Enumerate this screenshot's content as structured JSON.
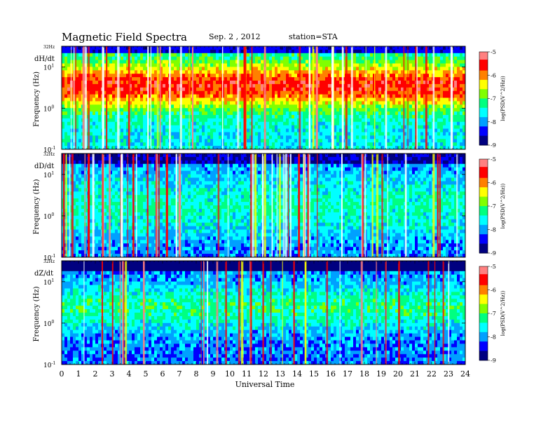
{
  "title": "Magnetic  Field  Spectra",
  "date": "Sep. 2  , 2012",
  "station": "station=STA",
  "chart_data": [
    {
      "type": "heatmap",
      "panel_label": "dH/dt",
      "ylabel": "Frequency  (Hz)",
      "y_top_label": "32Hz",
      "y_ticks": [
        {
          "label": "10",
          "exp": "1",
          "value": 10
        },
        {
          "label": "10",
          "exp": "0",
          "value": 1
        },
        {
          "label": "10",
          "exp": "-1",
          "value": 0.1
        }
      ],
      "yscale": "log",
      "ylim": [
        0.1,
        32
      ],
      "xlim": [
        0,
        24
      ],
      "colorbar": {
        "label": "log(PSD(V^2/Hz))",
        "ticks": [
          -5,
          -6,
          -7,
          -8,
          -9
        ],
        "range": [
          -9,
          -5
        ]
      },
      "description_of_values": "strong broadband power around 1-10 Hz, peak near 3 Hz; many vertical broadband impulses"
    },
    {
      "type": "heatmap",
      "panel_label": "dD/dt",
      "ylabel": "Frequency  (Hz)",
      "y_top_label": "32Hz",
      "y_ticks": [
        {
          "label": "10",
          "exp": "1",
          "value": 10
        },
        {
          "label": "10",
          "exp": "0",
          "value": 1
        },
        {
          "label": "10",
          "exp": "-1",
          "value": 0.1
        }
      ],
      "yscale": "log",
      "ylim": [
        0.1,
        32
      ],
      "xlim": [
        0,
        24
      ],
      "colorbar": {
        "label": "log(PSD(V^2/Hz))",
        "ticks": [
          -5,
          -6,
          -7,
          -8,
          -9
        ],
        "range": [
          -9,
          -5
        ]
      }
    },
    {
      "type": "heatmap",
      "panel_label": "dZ/dt",
      "ylabel": "Frequency  (Hz)",
      "y_top_label": "32Hz",
      "y_ticks": [
        {
          "label": "10",
          "exp": "1",
          "value": 10
        },
        {
          "label": "10",
          "exp": "0",
          "value": 1
        },
        {
          "label": "10",
          "exp": "-1",
          "value": 0.1
        }
      ],
      "yscale": "log",
      "ylim": [
        0.1,
        32
      ],
      "xlim": [
        0,
        24
      ],
      "colorbar": {
        "label": "log(PSD(V^2/Hz))",
        "ticks": [
          -5,
          -6,
          -7,
          -8,
          -9
        ],
        "range": [
          -9,
          -5
        ]
      }
    }
  ],
  "x_axis": {
    "label": "Universal  Time",
    "ticks": [
      "0",
      "1",
      "2",
      "3",
      "4",
      "5",
      "6",
      "7",
      "8",
      "9",
      "10",
      "11",
      "12",
      "13",
      "14",
      "15",
      "16",
      "17",
      "18",
      "19",
      "20",
      "21",
      "22",
      "23",
      "24"
    ]
  },
  "colormap": [
    "#000080",
    "#0000ff",
    "#00a0ff",
    "#00ffff",
    "#00ff80",
    "#80ff00",
    "#ffff00",
    "#ff8000",
    "#ff0000",
    "#ff8080",
    "#ffffff"
  ]
}
